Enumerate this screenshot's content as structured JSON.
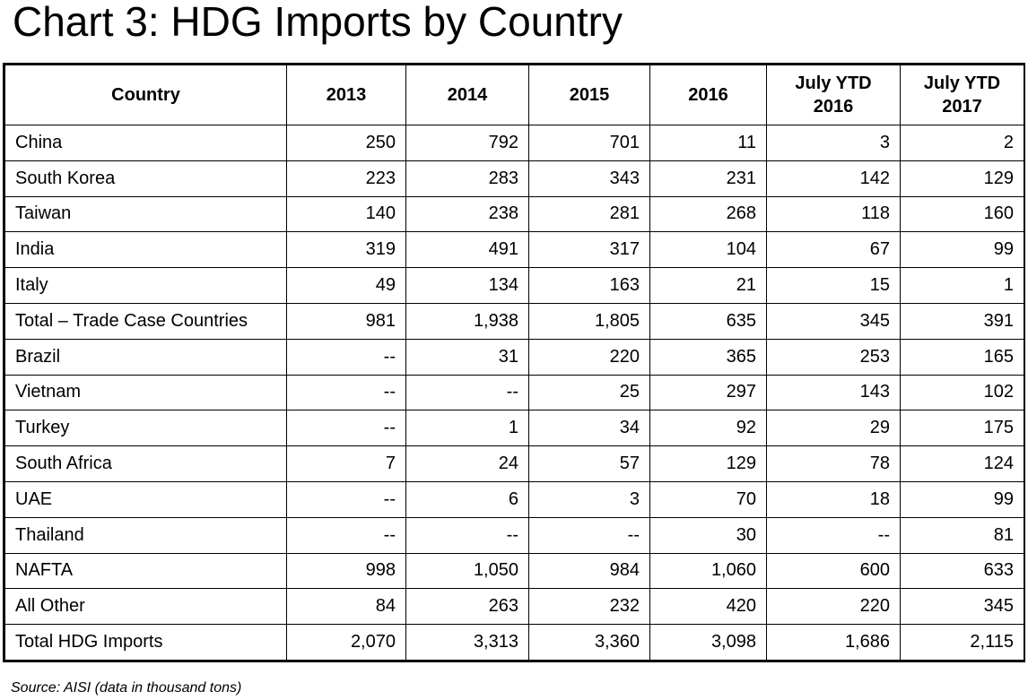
{
  "title": "Chart 3: HDG Imports by Country",
  "source": "Source: AISI (data in thousand tons)",
  "chart_data": {
    "type": "table",
    "title": "Chart 3: HDG Imports by Country",
    "columns": [
      "Country",
      "2013",
      "2014",
      "2015",
      "2016",
      "July YTD 2016",
      "July YTD 2017"
    ],
    "rows": [
      [
        "China",
        "250",
        "792",
        "701",
        "11",
        "3",
        "2"
      ],
      [
        "South Korea",
        "223",
        "283",
        "343",
        "231",
        "142",
        "129"
      ],
      [
        "Taiwan",
        "140",
        "238",
        "281",
        "268",
        "118",
        "160"
      ],
      [
        "India",
        "319",
        "491",
        "317",
        "104",
        "67",
        "99"
      ],
      [
        "Italy",
        "49",
        "134",
        "163",
        "21",
        "15",
        "1"
      ],
      [
        "Total – Trade Case Countries",
        "981",
        "1,938",
        "1,805",
        "635",
        "345",
        "391"
      ],
      [
        "Brazil",
        "--",
        "31",
        "220",
        "365",
        "253",
        "165"
      ],
      [
        "Vietnam",
        "--",
        "--",
        "25",
        "297",
        "143",
        "102"
      ],
      [
        "Turkey",
        "--",
        "1",
        "34",
        "92",
        "29",
        "175"
      ],
      [
        "South Africa",
        "7",
        "24",
        "57",
        "129",
        "78",
        "124"
      ],
      [
        "UAE",
        "--",
        "6",
        "3",
        "70",
        "18",
        "99"
      ],
      [
        "Thailand",
        "--",
        "--",
        "--",
        "30",
        "--",
        "81"
      ],
      [
        "NAFTA",
        "998",
        "1,050",
        "984",
        "1,060",
        "600",
        "633"
      ],
      [
        "All Other",
        "84",
        "263",
        "232",
        "420",
        "220",
        "345"
      ],
      [
        "Total HDG Imports",
        "2,070",
        "3,313",
        "3,360",
        "3,098",
        "1,686",
        "2,115"
      ]
    ],
    "source": "Source: AISI (data in thousand tons)"
  }
}
